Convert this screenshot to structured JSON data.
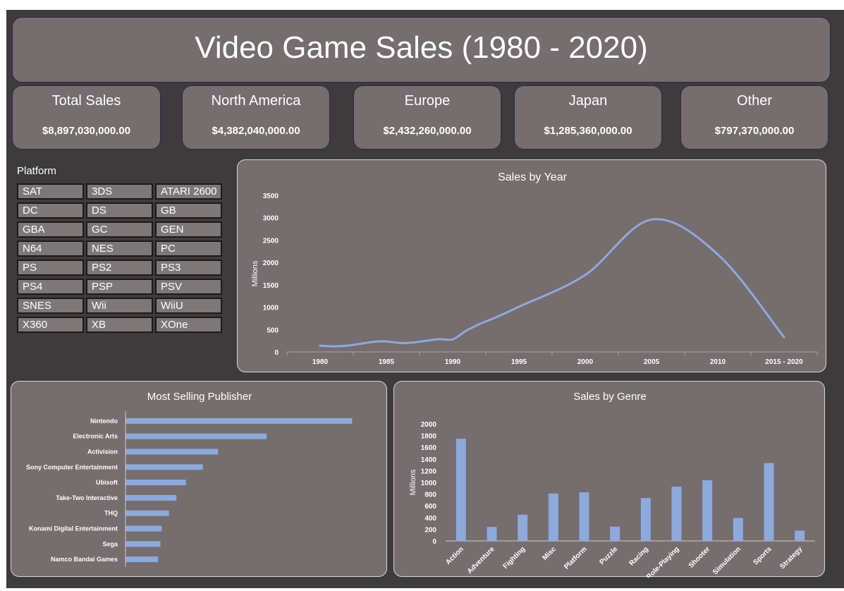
{
  "header": {
    "title": "Video Game Sales (1980 - 2020)"
  },
  "kpis": [
    {
      "label": "Total Sales",
      "value": "$8,897,030,000.00"
    },
    {
      "label": "North America",
      "value": "$4,382,040,000.00"
    },
    {
      "label": "Europe",
      "value": "$2,432,260,000.00"
    },
    {
      "label": "Japan",
      "value": "$1,285,360,000.00"
    },
    {
      "label": "Other",
      "value": "$797,370,000.00"
    }
  ],
  "platform_slicer": {
    "title": "Platform",
    "items": [
      "SAT",
      "3DS",
      "ATARI 2600",
      "DC",
      "DS",
      "GB",
      "GBA",
      "GC",
      "GEN",
      "N64",
      "NES",
      "PC",
      "PS",
      "PS2",
      "PS3",
      "PS4",
      "PSP",
      "PSV",
      "SNES",
      "Wii",
      "WiiU",
      "X360",
      "XB",
      "XOne"
    ]
  },
  "colors": {
    "background": "#3d3b3c",
    "panel": "#756d6e",
    "series": "#8ea9db",
    "text": "#ffffff"
  },
  "chart_data": [
    {
      "type": "line",
      "title": "Sales by Year",
      "ylabel": "Millions",
      "xlabel": "",
      "categories": [
        "1980",
        "1985",
        "1990",
        "1995",
        "2000",
        "2005",
        "2010",
        "2015 - 2020"
      ],
      "ylim": [
        0,
        3500
      ],
      "yticks": [
        0,
        500,
        1000,
        1500,
        2000,
        2500,
        3000,
        3500
      ],
      "points": [
        {
          "x": 1980,
          "y": 140
        },
        {
          "x": 1981,
          "y": 125
        },
        {
          "x": 1982,
          "y": 140
        },
        {
          "x": 1983,
          "y": 180
        },
        {
          "x": 1984,
          "y": 225
        },
        {
          "x": 1985,
          "y": 235
        },
        {
          "x": 1986,
          "y": 200
        },
        {
          "x": 1987,
          "y": 210
        },
        {
          "x": 1988,
          "y": 250
        },
        {
          "x": 1989,
          "y": 285
        },
        {
          "x": 1990,
          "y": 280
        },
        {
          "x": 1991,
          "y": 470
        },
        {
          "x": 1992,
          "y": 620
        },
        {
          "x": 1993,
          "y": 740
        },
        {
          "x": 1994,
          "y": 870
        },
        {
          "x": 1995,
          "y": 1010
        },
        {
          "x": 2000,
          "y": 1720
        },
        {
          "x": 2005,
          "y": 2960
        },
        {
          "x": 2010,
          "y": 2180
        },
        {
          "x": 2015,
          "y": 330
        }
      ],
      "grid": false
    },
    {
      "type": "bar",
      "orientation": "horizontal",
      "title": "Most Selling Publisher",
      "categories": [
        "Nintendo",
        "Electronic Arts",
        "Activision",
        "Sony Computer Entertainment",
        "Ubisoft",
        "Take-Two Interactive",
        "THQ",
        "Konami Digital Entertainment",
        "Sega",
        "Namco Bandai Games"
      ],
      "values": [
        1784,
        1110,
        727,
        607,
        474,
        399,
        340,
        283,
        272,
        254
      ]
    },
    {
      "type": "bar",
      "title": "Sales by Genre",
      "ylabel": "Millions",
      "xlabel": "",
      "categories": [
        "Action",
        "Adventure",
        "Fighting",
        "Misc",
        "Platform",
        "Puzzle",
        "Racing",
        "Role-Playing",
        "Shooter",
        "Simulation",
        "Sports",
        "Strategy"
      ],
      "values": [
        1745,
        239,
        448,
        810,
        831,
        245,
        732,
        927,
        1037,
        392,
        1331,
        175
      ],
      "ylim": [
        0,
        2000
      ],
      "yticks": [
        0,
        200,
        400,
        600,
        800,
        1000,
        1200,
        1400,
        1600,
        1800,
        2000
      ]
    }
  ]
}
